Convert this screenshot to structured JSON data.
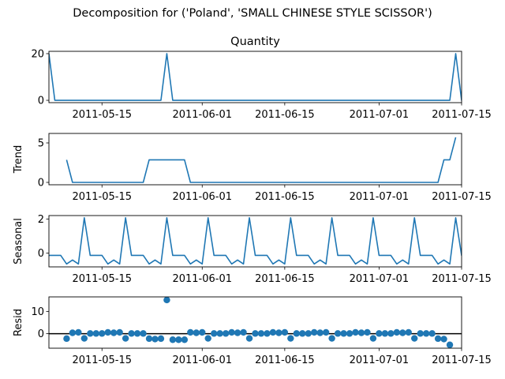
{
  "figure": {
    "suptitle": "Decomposition for ('Poland', 'SMALL CHINESE STYLE SCISSOR')"
  },
  "colors": {
    "series": "#1f77b4",
    "axis": "#000000",
    "zero_line": "#000000"
  },
  "chart_data": [
    {
      "type": "line",
      "panel": "observed",
      "title": "Quantity",
      "ylabel": "",
      "x_start": "2011-05-06",
      "x_end": "2011-07-15",
      "xlim": [
        "2011-05-06",
        "2011-07-15"
      ],
      "ylim": [
        -1,
        21
      ],
      "yticks": [
        0,
        20
      ],
      "xtick_labels": [
        "2011-05-15",
        "2011-06-01",
        "2011-06-15",
        "2011-07-01",
        "2011-07-15"
      ],
      "values": [
        20,
        0,
        0,
        0,
        0,
        0,
        0,
        0,
        0,
        0,
        0,
        0,
        0,
        0,
        0,
        0,
        0,
        0,
        0,
        0,
        20,
        0,
        0,
        0,
        0,
        0,
        0,
        0,
        0,
        0,
        0,
        0,
        0,
        0,
        0,
        0,
        0,
        0,
        0,
        0,
        0,
        0,
        0,
        0,
        0,
        0,
        0,
        0,
        0,
        0,
        0,
        0,
        0,
        0,
        0,
        0,
        0,
        0,
        0,
        0,
        0,
        0,
        0,
        0,
        0,
        0,
        0,
        0,
        0,
        20,
        0,
        20
      ]
    },
    {
      "type": "line",
      "panel": "trend",
      "ylabel": "Trend",
      "x_start": "2011-05-06",
      "x_end": "2011-07-15",
      "xlim": [
        "2011-05-06",
        "2011-07-15"
      ],
      "ylim": [
        -0.3,
        6.2
      ],
      "yticks": [
        0,
        5
      ],
      "xtick_labels": [
        "2011-05-15",
        "2011-06-01",
        "2011-06-15",
        "2011-07-01",
        "2011-07-15"
      ],
      "values": [
        null,
        null,
        null,
        2.86,
        0,
        0,
        0,
        0,
        0,
        0,
        0,
        0,
        0,
        0,
        0,
        0,
        0,
        2.86,
        2.86,
        2.86,
        2.86,
        2.86,
        2.86,
        2.86,
        0,
        0,
        0,
        0,
        0,
        0,
        0,
        0,
        0,
        0,
        0,
        0,
        0,
        0,
        0,
        0,
        0,
        0,
        0,
        0,
        0,
        0,
        0,
        0,
        0,
        0,
        0,
        0,
        0,
        0,
        0,
        0,
        0,
        0,
        0,
        0,
        0,
        0,
        0,
        0,
        0,
        0,
        0,
        2.86,
        2.86,
        5.71,
        null,
        null
      ]
    },
    {
      "type": "line",
      "panel": "seasonal",
      "ylabel": "Seasonal",
      "x_start": "2011-05-06",
      "x_end": "2011-07-15",
      "xlim": [
        "2011-05-06",
        "2011-07-15"
      ],
      "ylim": [
        -0.8,
        2.2
      ],
      "yticks": [
        0,
        2
      ],
      "xtick_labels": [
        "2011-05-15",
        "2011-06-01",
        "2011-06-15",
        "2011-07-01",
        "2011-07-15"
      ],
      "values": [
        -0.13,
        -0.13,
        -0.13,
        -0.63,
        -0.4,
        -0.63,
        2.07,
        -0.13,
        -0.13,
        -0.13,
        -0.63,
        -0.4,
        -0.63,
        2.07,
        -0.13,
        -0.13,
        -0.13,
        -0.63,
        -0.4,
        -0.63,
        2.07,
        -0.13,
        -0.13,
        -0.13,
        -0.63,
        -0.4,
        -0.63,
        2.07,
        -0.13,
        -0.13,
        -0.13,
        -0.63,
        -0.4,
        -0.63,
        2.07,
        -0.13,
        -0.13,
        -0.13,
        -0.63,
        -0.4,
        -0.63,
        2.07,
        -0.13,
        -0.13,
        -0.13,
        -0.63,
        -0.4,
        -0.63,
        2.07,
        -0.13,
        -0.13,
        -0.13,
        -0.63,
        -0.4,
        -0.63,
        2.07,
        -0.13,
        -0.13,
        -0.13,
        -0.63,
        -0.4,
        -0.63,
        2.07,
        -0.13,
        -0.13,
        -0.13,
        -0.63,
        -0.4,
        -0.63,
        2.07,
        -0.13,
        -0.13
      ]
    },
    {
      "type": "scatter",
      "panel": "resid",
      "ylabel": "Resid",
      "x_start": "2011-05-06",
      "x_end": "2011-07-15",
      "xlim": [
        "2011-05-06",
        "2011-07-15"
      ],
      "ylim": [
        -6.5,
        16.5
      ],
      "yticks": [
        0,
        10
      ],
      "zero_line": true,
      "xtick_labels": [
        "2011-05-15",
        "2011-06-01",
        "2011-06-15",
        "2011-07-01",
        "2011-07-15"
      ],
      "values": [
        null,
        null,
        null,
        -2.2,
        0.4,
        0.6,
        -2.1,
        0.1,
        0.1,
        0.1,
        0.6,
        0.4,
        0.6,
        -2.1,
        0.1,
        0.1,
        0.1,
        -2.2,
        -2.4,
        -2.2,
        15.1,
        -2.7,
        -2.7,
        -2.7,
        0.6,
        0.4,
        0.6,
        -2.1,
        0.1,
        0.1,
        0.1,
        0.6,
        0.4,
        0.6,
        -2.1,
        0.1,
        0.1,
        0.1,
        0.6,
        0.4,
        0.6,
        -2.1,
        0.1,
        0.1,
        0.1,
        0.6,
        0.4,
        0.6,
        -2.1,
        0.1,
        0.1,
        0.1,
        0.6,
        0.4,
        0.6,
        -2.1,
        0.1,
        0.1,
        0.1,
        0.6,
        0.4,
        0.6,
        -2.1,
        0.1,
        0.1,
        0.1,
        -2.2,
        -2.4,
        -5.0,
        null,
        null,
        null
      ]
    }
  ]
}
